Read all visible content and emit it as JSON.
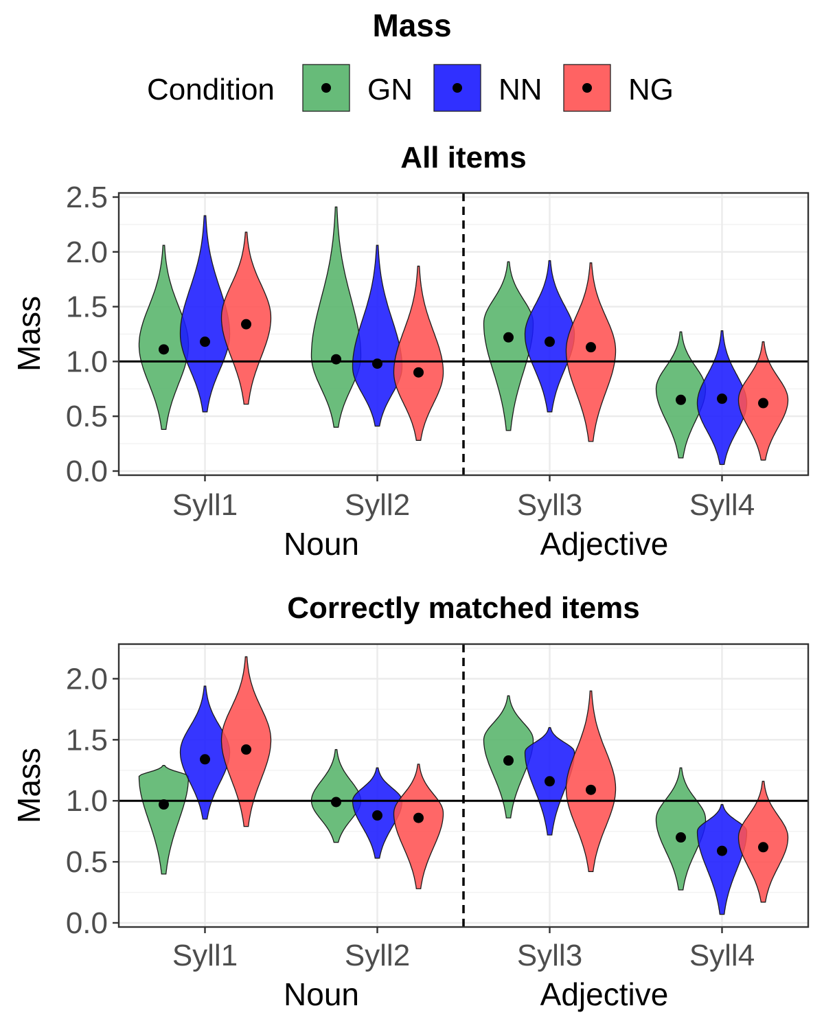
{
  "title": "Mass",
  "legend": {
    "title": "Condition",
    "position": "top",
    "entries": [
      {
        "name": "GN",
        "color": "#56B46A"
      },
      {
        "name": "NN",
        "color": "#1A1AFF"
      },
      {
        "name": "NG",
        "color": "#FF5252"
      }
    ]
  },
  "chart_data": [
    {
      "type": "violin",
      "title": "All items",
      "ylabel": "Mass",
      "xlabel_groups": [
        {
          "label": "Noun",
          "categories": [
            "Syll1",
            "Syll2"
          ]
        },
        {
          "label": "Adjective",
          "categories": [
            "Syll3",
            "Syll4"
          ]
        }
      ],
      "categories": [
        "Syll1",
        "Syll2",
        "Syll3",
        "Syll4"
      ],
      "ylim": [
        0,
        2.5
      ],
      "yticks": [
        "0.0",
        "0.5",
        "1.0",
        "1.5",
        "2.0",
        "2.5"
      ],
      "reference_line": 1.0,
      "group_separator": "dashed line between Syll2 and Syll3",
      "grid": true,
      "series": [
        {
          "name": "GN",
          "means": [
            1.11,
            1.02,
            1.22,
            0.65
          ],
          "min": [
            0.38,
            0.4,
            0.37,
            0.12
          ],
          "max": [
            2.06,
            2.41,
            1.91,
            1.27
          ],
          "mode": [
            1.15,
            1.05,
            1.35,
            0.75
          ]
        },
        {
          "name": "NN",
          "means": [
            1.18,
            0.98,
            1.18,
            0.66
          ],
          "min": [
            0.54,
            0.41,
            0.54,
            0.06
          ],
          "max": [
            2.33,
            2.06,
            1.92,
            1.28
          ],
          "mode": [
            1.25,
            0.95,
            1.25,
            0.62
          ]
        },
        {
          "name": "NG",
          "means": [
            1.34,
            0.9,
            1.13,
            0.62
          ],
          "min": [
            0.61,
            0.28,
            0.27,
            0.1
          ],
          "max": [
            2.18,
            1.87,
            1.9,
            1.18
          ],
          "mode": [
            1.4,
            0.9,
            1.1,
            0.65
          ]
        }
      ]
    },
    {
      "type": "violin",
      "title": "Correctly matched items",
      "ylabel": "Mass",
      "xlabel_groups": [
        {
          "label": "Noun",
          "categories": [
            "Syll1",
            "Syll2"
          ]
        },
        {
          "label": "Adjective",
          "categories": [
            "Syll3",
            "Syll4"
          ]
        }
      ],
      "categories": [
        "Syll1",
        "Syll2",
        "Syll3",
        "Syll4"
      ],
      "ylim": [
        0,
        2.25
      ],
      "yticks": [
        "0.0",
        "0.5",
        "1.0",
        "1.5",
        "2.0"
      ],
      "reference_line": 1.0,
      "group_separator": "dashed line between Syll2 and Syll3",
      "grid": true,
      "series": [
        {
          "name": "GN",
          "means": [
            0.97,
            0.99,
            1.33,
            0.7
          ],
          "min": [
            0.4,
            0.66,
            0.86,
            0.27
          ],
          "max": [
            1.29,
            1.42,
            1.86,
            1.27
          ],
          "mode": [
            1.2,
            1.0,
            1.5,
            0.85
          ]
        },
        {
          "name": "NN",
          "means": [
            1.34,
            0.88,
            1.16,
            0.59
          ],
          "min": [
            0.85,
            0.53,
            0.72,
            0.07
          ],
          "max": [
            1.94,
            1.27,
            1.6,
            0.97
          ],
          "mode": [
            1.4,
            1.0,
            1.4,
            0.75
          ]
        },
        {
          "name": "NG",
          "means": [
            1.42,
            0.86,
            1.09,
            0.62
          ],
          "min": [
            0.79,
            0.28,
            0.42,
            0.17
          ],
          "max": [
            2.18,
            1.3,
            1.9,
            1.16
          ],
          "mode": [
            1.5,
            0.9,
            1.1,
            0.7
          ]
        }
      ]
    }
  ]
}
